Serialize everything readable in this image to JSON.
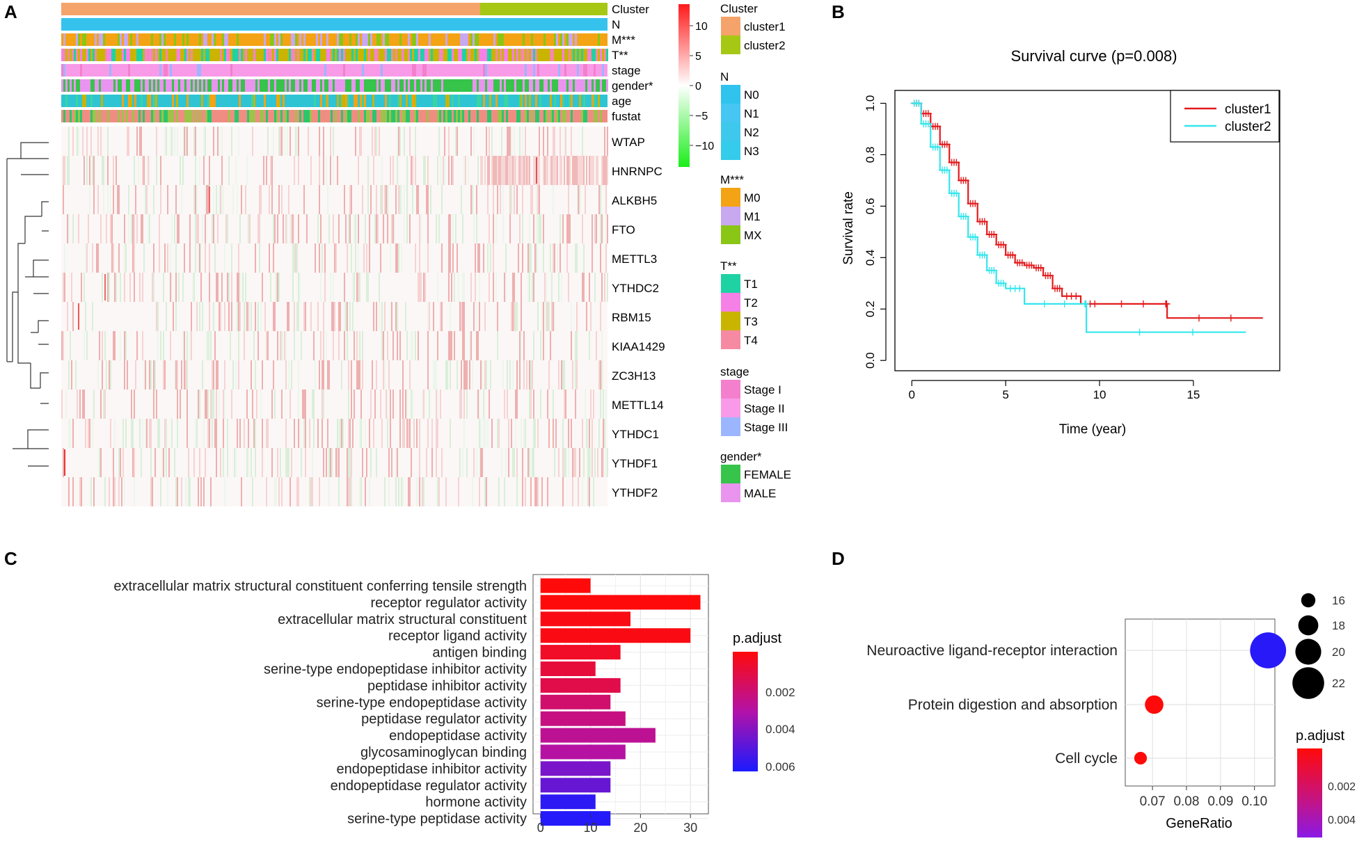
{
  "panels": {
    "a": "A",
    "b": "B",
    "c": "C",
    "d": "D"
  },
  "colors": {
    "cluster1": "#f4a36b",
    "cluster2": "#a6c814",
    "N": "#35c3ee",
    "M_M0": "#f3a313",
    "M_M1": "#c8a8ee",
    "M_MX": "#8ac616",
    "T_T1": "#1fd2a4",
    "T_T2": "#f580e6",
    "T_T3": "#c9b400",
    "T_T4": "#f58aa2",
    "stage_I": "#f37fcd",
    "stage_II": "#f89ae8",
    "stage_III": "#9bb6ff",
    "female": "#36c44a",
    "male": "#e994ef",
    "km_cluster1": "#e31a1c",
    "km_cluster2": "#33e6ec"
  },
  "heatmap": {
    "annotation_labels": [
      "Cluster",
      "N",
      "M***",
      "T**",
      "stage",
      "gender*",
      "age",
      "fustat"
    ],
    "genes": [
      "WTAP",
      "HNRNPC",
      "ALKBH5",
      "FTO",
      "METTL3",
      "YTHDC2",
      "RBM15",
      "KIAA1429",
      "ZC3H13",
      "METTL14",
      "YTHDC1",
      "YTHDF1",
      "YTHDF2"
    ],
    "colorbar_ticks": [
      "10",
      "5",
      "0",
      "−5",
      "−10"
    ],
    "legend": [
      {
        "title": "Cluster",
        "items": [
          "cluster1",
          "cluster2"
        ]
      },
      {
        "title": "N",
        "items": [
          "N0",
          "N1",
          "N2",
          "N3"
        ]
      },
      {
        "title": "M***",
        "items": [
          "M0",
          "M1",
          "MX"
        ]
      },
      {
        "title": "T**",
        "items": [
          "T1",
          "T2",
          "T3",
          "T4"
        ]
      },
      {
        "title": "stage",
        "items": [
          "Stage I",
          "Stage II",
          "Stage III"
        ]
      },
      {
        "title": "gender*",
        "items": [
          "FEMALE",
          "MALE"
        ]
      }
    ]
  },
  "chart_data": [
    {
      "type": "line",
      "title": "Survival curve (p=0.008)",
      "xlabel": "Time (year)",
      "ylabel": "Survival rate",
      "xlim": [
        -0.9,
        19.6
      ],
      "ylim": [
        -0.04,
        1.05
      ],
      "xticks": [
        "0",
        "5",
        "10",
        "15"
      ],
      "yticks": [
        "0.0",
        "0.2",
        "0.4",
        "0.6",
        "0.8",
        "1.0"
      ],
      "legend_position": "top-right",
      "series": [
        {
          "name": "cluster1",
          "x": [
            0,
            0.5,
            1,
            1.5,
            2,
            2.5,
            3,
            3.5,
            4,
            4.5,
            5,
            5.5,
            6,
            6.5,
            7,
            7.5,
            8,
            9,
            10,
            13.5,
            13.6,
            18.7
          ],
          "y": [
            1.0,
            0.96,
            0.91,
            0.84,
            0.77,
            0.7,
            0.61,
            0.54,
            0.49,
            0.45,
            0.41,
            0.38,
            0.37,
            0.36,
            0.33,
            0.28,
            0.25,
            0.22,
            0.22,
            0.22,
            0.165,
            0.165
          ]
        },
        {
          "name": "cluster2",
          "x": [
            0,
            0.5,
            1,
            1.5,
            2,
            2.5,
            3,
            3.5,
            4,
            4.5,
            5,
            6,
            9.2,
            9.3,
            17.8
          ],
          "y": [
            1.0,
            0.92,
            0.83,
            0.74,
            0.65,
            0.56,
            0.48,
            0.41,
            0.35,
            0.3,
            0.28,
            0.22,
            0.22,
            0.11,
            0.11
          ]
        }
      ]
    },
    {
      "type": "bar",
      "orientation": "horizontal",
      "categories": [
        "extracellular matrix structural constituent conferring tensile strength",
        "receptor regulator activity",
        "extracellular matrix structural constituent",
        "receptor ligand activity",
        "antigen binding",
        "serine-type endopeptidase inhibitor activity",
        "peptidase inhibitor activity",
        "serine-type endopeptidase activity",
        "peptidase regulator activity",
        "endopeptidase activity",
        "glycosaminoglycan binding",
        "endopeptidase inhibitor activity",
        "endopeptidase regulator activity",
        "hormone activity",
        "serine-type peptidase activity"
      ],
      "values": [
        10,
        32,
        18,
        30,
        16,
        11,
        16,
        14,
        17,
        23,
        17,
        14,
        14,
        11,
        14
      ],
      "p_adjust": [
        0.0002,
        0.0002,
        0.0004,
        0.0004,
        0.0008,
        0.0012,
        0.0015,
        0.0022,
        0.0026,
        0.003,
        0.0033,
        0.0046,
        0.005,
        0.0062,
        0.0064
      ],
      "xlim": [
        -1.5,
        33.6
      ],
      "xticks": [
        "0",
        "10",
        "20",
        "30"
      ],
      "legend_title": "p.adjust",
      "color_ticks": [
        "0.002",
        "0.004",
        "0.006"
      ]
    },
    {
      "type": "scatter",
      "xlabel": "GeneRatio",
      "xlim": [
        0.062,
        0.106
      ],
      "xticks": [
        "0.07",
        "0.08",
        "0.09",
        "0.10"
      ],
      "categories": [
        "Neuroactive ligand-receptor interaction",
        "Protein digestion and absorption",
        "Cell cycle"
      ],
      "x": [
        0.104,
        0.0705,
        0.0665
      ],
      "count": [
        23,
        17,
        15
      ],
      "p_adjust": [
        0.0048,
        0.0002,
        0.0002
      ],
      "size_legend_title": "",
      "size_legend": [
        "16",
        "18",
        "20",
        "22"
      ],
      "color_legend_title": "p.adjust",
      "color_ticks": [
        "0.002",
        "0.004"
      ]
    }
  ]
}
